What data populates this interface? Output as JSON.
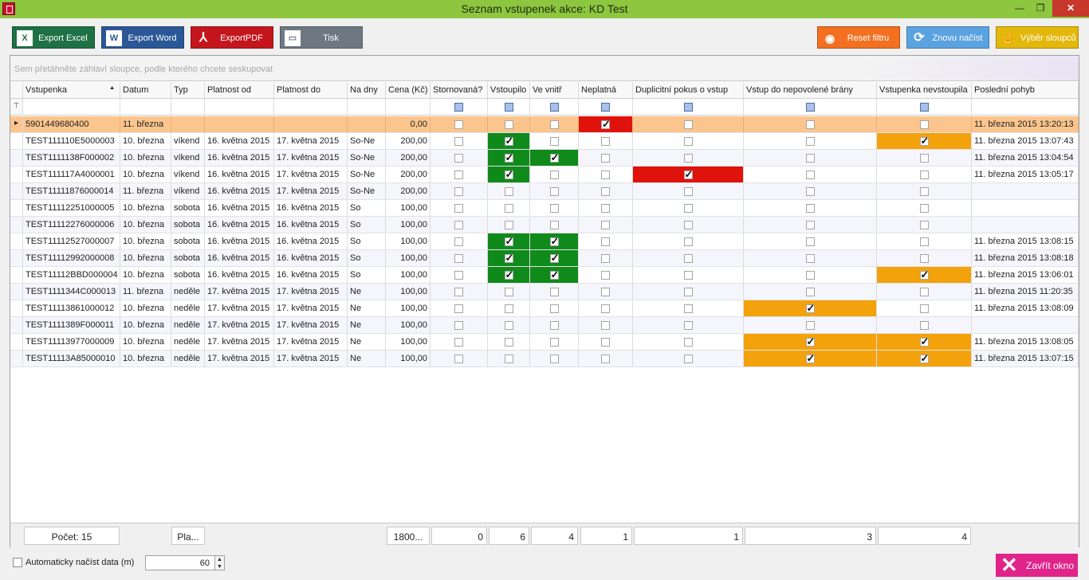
{
  "window": {
    "title": "Seznam vstupenek akce: KD Test",
    "min": "—",
    "max": "❐",
    "close": "✕"
  },
  "toolbar": {
    "export_excel": "Export Excel",
    "export_word": "Export Word",
    "export_pdf": "ExportPDF",
    "print": "Tisk",
    "reset_filter": "Reset filtru",
    "reload": "Znovu načíst",
    "choose_columns": "Výběr sloupců"
  },
  "grid": {
    "group_hint": "Sem přetáhněte záhlaví sloupce, podle kterého chcete seskupovat",
    "columns": [
      "Vstupenka",
      "Datum",
      "Typ",
      "Platnost od",
      "Platnost do",
      "Na dny",
      "Cena (Kč)",
      "Stornovaná?",
      "Vstoupilo",
      "Ve vnitř",
      "Neplatná",
      "Duplicitní pokus o vstup",
      "Vstup do nepovolené brány",
      "Vstupenka nevstoupila",
      "Poslední pohyb"
    ],
    "sort_column": "Vstupenka",
    "sort_indicator": "▲",
    "filter_icon": "⊤",
    "rows": [
      {
        "ticket": "5901449680400",
        "date": "11. března",
        "type": "",
        "from": "",
        "to": "",
        "days": "",
        "price": "0,00",
        "storno": false,
        "entered": false,
        "inside": false,
        "invalid": true,
        "duplicate": false,
        "wrong_gate": false,
        "not_entered": false,
        "last": "11. března 2015 13:20:13"
      },
      {
        "ticket": "TEST111110E5000003",
        "date": "10. března",
        "type": "víkend",
        "from": "16. května 2015",
        "to": "17. května 2015",
        "days": "So-Ne",
        "price": "200,00",
        "storno": false,
        "entered": true,
        "inside": false,
        "invalid": false,
        "duplicate": false,
        "wrong_gate": false,
        "not_entered": true,
        "last": "11. března 2015 13:07:43"
      },
      {
        "ticket": "TEST1111138F000002",
        "date": "10. března",
        "type": "víkend",
        "from": "16. května 2015",
        "to": "17. května 2015",
        "days": "So-Ne",
        "price": "200,00",
        "storno": false,
        "entered": true,
        "inside": true,
        "invalid": false,
        "duplicate": false,
        "wrong_gate": false,
        "not_entered": false,
        "last": "11. března 2015 13:04:54"
      },
      {
        "ticket": "TEST111117A4000001",
        "date": "10. března",
        "type": "víkend",
        "from": "16. května 2015",
        "to": "17. května 2015",
        "days": "So-Ne",
        "price": "200,00",
        "storno": false,
        "entered": true,
        "inside": false,
        "invalid": false,
        "duplicate": true,
        "wrong_gate": false,
        "not_entered": false,
        "last": "11. března 2015 13:05:17"
      },
      {
        "ticket": "TEST11111876000014",
        "date": "11. března",
        "type": "víkend",
        "from": "16. května 2015",
        "to": "17. května 2015",
        "days": "So-Ne",
        "price": "200,00",
        "storno": false,
        "entered": false,
        "inside": false,
        "invalid": false,
        "duplicate": false,
        "wrong_gate": false,
        "not_entered": false,
        "last": ""
      },
      {
        "ticket": "TEST11112251000005",
        "date": "10. března",
        "type": "sobota",
        "from": "16. května 2015",
        "to": "16. května 2015",
        "days": "So",
        "price": "100,00",
        "storno": false,
        "entered": false,
        "inside": false,
        "invalid": false,
        "duplicate": false,
        "wrong_gate": false,
        "not_entered": false,
        "last": ""
      },
      {
        "ticket": "TEST11112276000006",
        "date": "10. března",
        "type": "sobota",
        "from": "16. května 2015",
        "to": "16. května 2015",
        "days": "So",
        "price": "100,00",
        "storno": false,
        "entered": false,
        "inside": false,
        "invalid": false,
        "duplicate": false,
        "wrong_gate": false,
        "not_entered": false,
        "last": ""
      },
      {
        "ticket": "TEST11112527000007",
        "date": "10. března",
        "type": "sobota",
        "from": "16. května 2015",
        "to": "16. května 2015",
        "days": "So",
        "price": "100,00",
        "storno": false,
        "entered": true,
        "inside": true,
        "invalid": false,
        "duplicate": false,
        "wrong_gate": false,
        "not_entered": false,
        "last": "11. března 2015 13:08:15"
      },
      {
        "ticket": "TEST11112992000008",
        "date": "10. března",
        "type": "sobota",
        "from": "16. května 2015",
        "to": "16. května 2015",
        "days": "So",
        "price": "100,00",
        "storno": false,
        "entered": true,
        "inside": true,
        "invalid": false,
        "duplicate": false,
        "wrong_gate": false,
        "not_entered": false,
        "last": "11. března 2015 13:08:18"
      },
      {
        "ticket": "TEST11112BBD000004",
        "date": "10. března",
        "type": "sobota",
        "from": "16. května 2015",
        "to": "16. května 2015",
        "days": "So",
        "price": "100,00",
        "storno": false,
        "entered": true,
        "inside": true,
        "invalid": false,
        "duplicate": false,
        "wrong_gate": false,
        "not_entered": true,
        "last": "11. března 2015 13:06:01"
      },
      {
        "ticket": "TEST1111344C000013",
        "date": "11. března",
        "type": "neděle",
        "from": "17. května 2015",
        "to": "17. května 2015",
        "days": "Ne",
        "price": "100,00",
        "storno": false,
        "entered": false,
        "inside": false,
        "invalid": false,
        "duplicate": false,
        "wrong_gate": false,
        "not_entered": false,
        "last": "11. března 2015 11:20:35"
      },
      {
        "ticket": "TEST11113861000012",
        "date": "10. března",
        "type": "neděle",
        "from": "17. května 2015",
        "to": "17. května 2015",
        "days": "Ne",
        "price": "100,00",
        "storno": false,
        "entered": false,
        "inside": false,
        "invalid": false,
        "duplicate": false,
        "wrong_gate": true,
        "not_entered": false,
        "last": "11. března 2015 13:08:09"
      },
      {
        "ticket": "TEST1111389F000011",
        "date": "10. března",
        "type": "neděle",
        "from": "17. května 2015",
        "to": "17. května 2015",
        "days": "Ne",
        "price": "100,00",
        "storno": false,
        "entered": false,
        "inside": false,
        "invalid": false,
        "duplicate": false,
        "wrong_gate": false,
        "not_entered": false,
        "last": ""
      },
      {
        "ticket": "TEST11113977000009",
        "date": "10. března",
        "type": "neděle",
        "from": "17. května 2015",
        "to": "17. května 2015",
        "days": "Ne",
        "price": "100,00",
        "storno": false,
        "entered": false,
        "inside": false,
        "invalid": false,
        "duplicate": false,
        "wrong_gate": true,
        "not_entered": true,
        "last": "11. března 2015 13:08:05"
      },
      {
        "ticket": "TEST11113A85000010",
        "date": "10. března",
        "type": "neděle",
        "from": "17. května 2015",
        "to": "17. května 2015",
        "days": "Ne",
        "price": "100,00",
        "storno": false,
        "entered": false,
        "inside": false,
        "invalid": false,
        "duplicate": false,
        "wrong_gate": true,
        "not_entered": true,
        "last": "11. března 2015 13:07:15"
      }
    ],
    "highlight_colors": {
      "entered": "#0f8a1b",
      "inside": "#0f8a1b",
      "invalid": "#e0120c",
      "duplicate": "#e0120c",
      "wrong_gate": "#f3a20c",
      "not_entered": "#f3a20c"
    },
    "footer": {
      "count": "Počet: 15",
      "validity": "Pla...",
      "price_sum": "1800...",
      "storno": "0",
      "entered": "6",
      "inside": "4",
      "invalid": "1",
      "duplicate": "1",
      "wrong_gate": "3",
      "not_entered": "4"
    }
  },
  "bottom": {
    "auto_load_label": "Automaticky načíst data (m)",
    "interval": "60",
    "spin_up": "▲",
    "spin_down": "▼",
    "close_window": "Zavřít okno",
    "close_glyph": "✕"
  },
  "icons": {
    "excel": "X",
    "word": "W",
    "pdf": "⅄",
    "print": "▭",
    "reset": "◉",
    "reload": "⟳",
    "columns": "☝"
  }
}
